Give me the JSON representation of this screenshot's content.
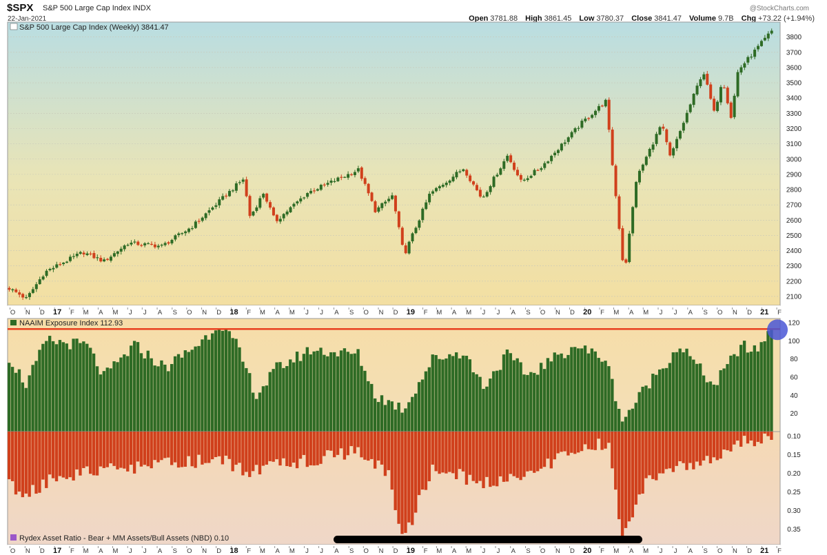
{
  "header": {
    "symbol": "$SPX",
    "name": "S&P 500 Large Cap Index",
    "exchange": "INDX",
    "date": "22-Jan-2021",
    "watermark": "@StockCharts.com",
    "open_label": "Open",
    "open": "3781.88",
    "high_label": "High",
    "high": "3861.45",
    "low_label": "Low",
    "low": "3780.37",
    "close_label": "Close",
    "close": "3841.47",
    "volume_label": "Volume",
    "volume": "9.7B",
    "chg_label": "Chg",
    "chg": "+73.22 (+1.94%)"
  },
  "colors": {
    "up": "#2e6b25",
    "down": "#d0401c",
    "bg_top": "#b6dce0",
    "bg_bottom": "#f3dfa0",
    "ref_line": "#e8401e",
    "marker": "#4a57d6"
  },
  "chart_data": [
    {
      "type": "candlestick",
      "title": "S&P 500 Large Cap Index (Weekly) 3841.47",
      "ylim": [
        2050,
        3880
      ],
      "y_ticks": [
        2100,
        2200,
        2300,
        2400,
        2500,
        2600,
        2700,
        2800,
        2900,
        3000,
        3100,
        3200,
        3300,
        3400,
        3500,
        3600,
        3700,
        3800
      ],
      "x_ticks": [
        "O",
        "N",
        "D",
        "17",
        "F",
        "M",
        "A",
        "M",
        "J",
        "J",
        "A",
        "S",
        "O",
        "N",
        "D",
        "18",
        "F",
        "M",
        "A",
        "M",
        "J",
        "J",
        "A",
        "S",
        "O",
        "N",
        "D",
        "19",
        "F",
        "M",
        "A",
        "M",
        "J",
        "J",
        "A",
        "S",
        "O",
        "N",
        "D",
        "20",
        "F",
        "M",
        "A",
        "M",
        "J",
        "J",
        "A",
        "S",
        "O",
        "N",
        "D",
        "21",
        "F"
      ],
      "year_ticks": [
        "17",
        "18",
        "19",
        "20",
        "21"
      ],
      "x_range": [
        "2016-09-26",
        "2021-02-08"
      ],
      "series_anchors": [
        {
          "x": "2016-09-26",
          "y": 2160
        },
        {
          "x": "2016-11-04",
          "y": 2085
        },
        {
          "x": "2016-12-12",
          "y": 2260
        },
        {
          "x": "2017-03-01",
          "y": 2390
        },
        {
          "x": "2017-04-13",
          "y": 2330
        },
        {
          "x": "2017-06-02",
          "y": 2450
        },
        {
          "x": "2017-08-11",
          "y": 2430
        },
        {
          "x": "2017-10-13",
          "y": 2560
        },
        {
          "x": "2018-01-26",
          "y": 2870
        },
        {
          "x": "2018-02-09",
          "y": 2620
        },
        {
          "x": "2018-03-09",
          "y": 2780
        },
        {
          "x": "2018-04-02",
          "y": 2590
        },
        {
          "x": "2018-06-08",
          "y": 2780
        },
        {
          "x": "2018-09-21",
          "y": 2930
        },
        {
          "x": "2018-10-26",
          "y": 2660
        },
        {
          "x": "2018-11-30",
          "y": 2760
        },
        {
          "x": "2018-12-24",
          "y": 2370
        },
        {
          "x": "2019-02-15",
          "y": 2770
        },
        {
          "x": "2019-04-26",
          "y": 2940
        },
        {
          "x": "2019-06-03",
          "y": 2740
        },
        {
          "x": "2019-07-26",
          "y": 3025
        },
        {
          "x": "2019-08-23",
          "y": 2850
        },
        {
          "x": "2019-10-04",
          "y": 2950
        },
        {
          "x": "2019-12-27",
          "y": 3240
        },
        {
          "x": "2020-02-14",
          "y": 3380
        },
        {
          "x": "2020-02-28",
          "y": 2950
        },
        {
          "x": "2020-03-23",
          "y": 2240
        },
        {
          "x": "2020-04-17",
          "y": 2870
        },
        {
          "x": "2020-06-08",
          "y": 3230
        },
        {
          "x": "2020-06-26",
          "y": 3010
        },
        {
          "x": "2020-09-02",
          "y": 3580
        },
        {
          "x": "2020-09-25",
          "y": 3300
        },
        {
          "x": "2020-10-12",
          "y": 3530
        },
        {
          "x": "2020-10-30",
          "y": 3270
        },
        {
          "x": "2020-11-13",
          "y": 3580
        },
        {
          "x": "2020-12-18",
          "y": 3710
        },
        {
          "x": "2021-01-22",
          "y": 3841
        }
      ]
    },
    {
      "type": "bar",
      "title": "NAAIM Exposure Index 112.93",
      "ylim": [
        0,
        120
      ],
      "y_ticks": [
        20,
        40,
        60,
        80,
        100,
        120
      ],
      "reference_line": 112.93,
      "series_anchors": [
        {
          "x": "2016-09-26",
          "y": 85
        },
        {
          "x": "2016-11-04",
          "y": 52
        },
        {
          "x": "2016-12-16",
          "y": 100
        },
        {
          "x": "2017-03-10",
          "y": 95
        },
        {
          "x": "2017-04-14",
          "y": 60
        },
        {
          "x": "2017-06-16",
          "y": 95
        },
        {
          "x": "2017-08-18",
          "y": 70
        },
        {
          "x": "2017-11-03",
          "y": 100
        },
        {
          "x": "2017-12-08",
          "y": 120
        },
        {
          "x": "2018-01-12",
          "y": 95
        },
        {
          "x": "2018-02-23",
          "y": 40
        },
        {
          "x": "2018-04-06",
          "y": 70
        },
        {
          "x": "2018-06-15",
          "y": 90
        },
        {
          "x": "2018-09-21",
          "y": 85
        },
        {
          "x": "2018-10-26",
          "y": 40
        },
        {
          "x": "2018-12-24",
          "y": 25
        },
        {
          "x": "2019-02-22",
          "y": 80
        },
        {
          "x": "2019-04-26",
          "y": 88
        },
        {
          "x": "2019-06-07",
          "y": 50
        },
        {
          "x": "2019-07-26",
          "y": 85
        },
        {
          "x": "2019-09-06",
          "y": 62
        },
        {
          "x": "2019-12-13",
          "y": 95
        },
        {
          "x": "2020-02-14",
          "y": 80
        },
        {
          "x": "2020-03-20",
          "y": 12
        },
        {
          "x": "2020-05-15",
          "y": 55
        },
        {
          "x": "2020-07-17",
          "y": 95
        },
        {
          "x": "2020-09-25",
          "y": 50
        },
        {
          "x": "2020-11-20",
          "y": 95
        },
        {
          "x": "2020-12-18",
          "y": 88
        },
        {
          "x": "2021-01-22",
          "y": 112.93
        }
      ]
    },
    {
      "type": "bar",
      "title": "Rydex Asset Ratio - Bear + MM Assets/Bull Assets (NBD) 0.10",
      "ylim": [
        0.0,
        0.37
      ],
      "y_ticks": [
        0.1,
        0.15,
        0.2,
        0.25,
        0.3,
        0.35
      ],
      "y_tick_labels": [
        "0.10",
        "0.15",
        "0.20",
        "0.25",
        "0.30",
        "0.35"
      ],
      "series_anchors": [
        {
          "x": "2016-09-26",
          "y": 0.22
        },
        {
          "x": "2016-11-04",
          "y": 0.25
        },
        {
          "x": "2017-01-06",
          "y": 0.2
        },
        {
          "x": "2017-06-16",
          "y": 0.18
        },
        {
          "x": "2017-12-08",
          "y": 0.16
        },
        {
          "x": "2018-02-09",
          "y": 0.19
        },
        {
          "x": "2018-06-15",
          "y": 0.16
        },
        {
          "x": "2018-09-21",
          "y": 0.14
        },
        {
          "x": "2018-11-23",
          "y": 0.2
        },
        {
          "x": "2018-12-24",
          "y": 0.36
        },
        {
          "x": "2019-02-22",
          "y": 0.18
        },
        {
          "x": "2019-06-07",
          "y": 0.22
        },
        {
          "x": "2019-08-23",
          "y": 0.2
        },
        {
          "x": "2019-12-27",
          "y": 0.13
        },
        {
          "x": "2020-02-21",
          "y": 0.12
        },
        {
          "x": "2020-03-20",
          "y": 0.36
        },
        {
          "x": "2020-05-15",
          "y": 0.2
        },
        {
          "x": "2020-09-25",
          "y": 0.16
        },
        {
          "x": "2020-11-13",
          "y": 0.12
        },
        {
          "x": "2021-01-22",
          "y": 0.1
        }
      ]
    }
  ],
  "xaxis_bottom_ticks": [
    "O",
    "N",
    "D",
    "17",
    "F",
    "M",
    "A",
    "M",
    "J",
    "J",
    "A",
    "S",
    "O",
    "N",
    "D",
    "18",
    "F",
    "M",
    "A",
    "M",
    "J",
    "J",
    "A",
    "S",
    "O",
    "N",
    "D",
    "19",
    "F",
    "M",
    "A",
    "M",
    "J",
    "J",
    "A",
    "S",
    "O",
    "N",
    "D",
    "20",
    "F",
    "M",
    "A",
    "M",
    "J",
    "J",
    "A",
    "S",
    "O",
    "N",
    "D",
    "21",
    "F"
  ]
}
